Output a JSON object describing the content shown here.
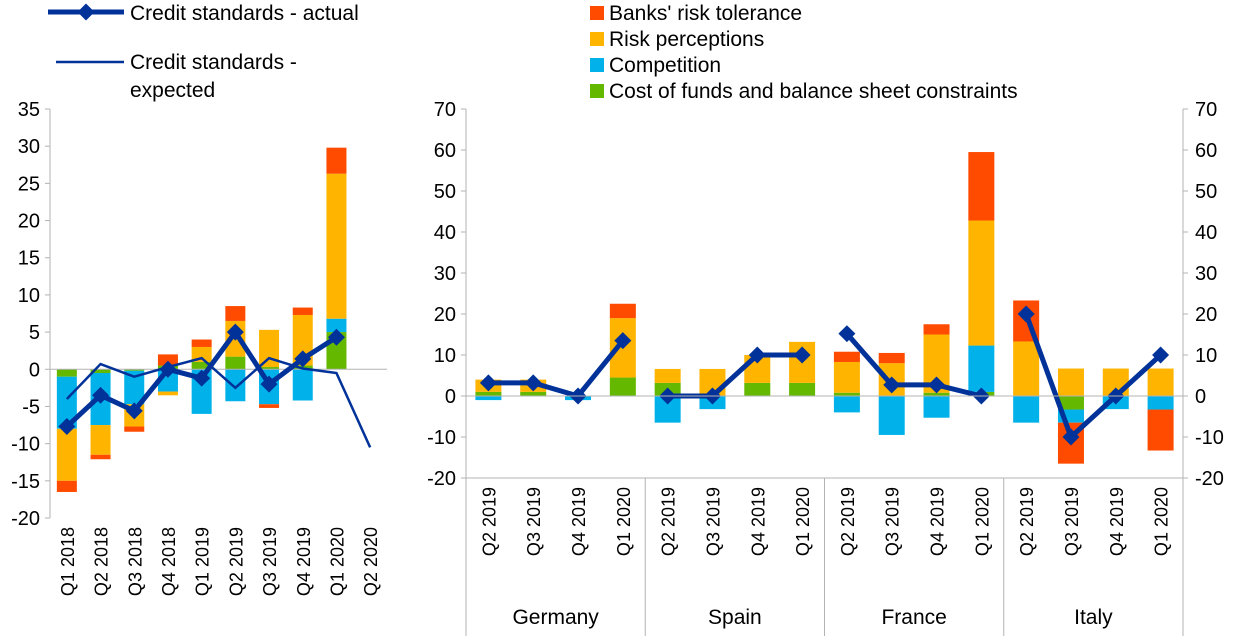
{
  "legend": {
    "actual": "Credit standards - actual",
    "expected_line1": "Credit standards -",
    "expected_line2": "expected",
    "risk_tolerance": "Banks' risk tolerance",
    "risk_perceptions": "Risk perceptions",
    "competition": "Competition",
    "cost_of_funds": "Cost of funds and balance sheet constraints"
  },
  "colors": {
    "risk_tolerance": "#ff4b00",
    "risk_perceptions": "#ffb400",
    "competition": "#00b1ea",
    "cost_of_funds": "#65b800",
    "actual": "#003299",
    "expected": "#003299",
    "axis": "#b3b3b3"
  },
  "chart_data": [
    {
      "type": "bar",
      "subtype": "stacked bar with lines",
      "title": "",
      "xlabel": "",
      "ylabel": "",
      "ylim": [
        -20,
        35
      ],
      "yticks": [
        35,
        30,
        25,
        20,
        15,
        10,
        5,
        0,
        -5,
        -10,
        -15,
        -20
      ],
      "grid": false,
      "legend_position": "top-left",
      "categories": [
        "Q1 2018",
        "Q2 2018",
        "Q3 2018",
        "Q4 2018",
        "Q1 2019",
        "Q2 2019",
        "Q3 2019",
        "Q4 2019",
        "Q1 2020",
        "Q2 2020"
      ],
      "series": [
        {
          "name": "Cost of funds and balance sheet constraints",
          "kind": "bar",
          "values": [
            -1,
            -0.5,
            -0.2,
            0.5,
            1,
            1.7,
            0.3,
            0.5,
            5,
            null
          ]
        },
        {
          "name": "Competition",
          "kind": "bar",
          "values": [
            -7,
            -7,
            -4.5,
            -3,
            -6,
            -4.3,
            -4.7,
            -4.2,
            1.8,
            null
          ]
        },
        {
          "name": "Risk perceptions",
          "kind": "bar",
          "values": [
            -7,
            -4,
            -3,
            -0.5,
            2,
            4.8,
            5,
            6.8,
            19.5,
            null
          ]
        },
        {
          "name": "Banks' risk tolerance",
          "kind": "bar",
          "values": [
            -1.5,
            -0.6,
            -0.7,
            1.5,
            1,
            2,
            -0.5,
            1,
            3.5,
            null
          ]
        },
        {
          "name": "Credit standards - actual",
          "kind": "line-marker",
          "values": [
            -7.7,
            -3.5,
            -5.6,
            0,
            -1.2,
            5,
            -2,
            1.4,
            4.3,
            null
          ]
        },
        {
          "name": "Credit standards - expected",
          "kind": "line",
          "values": [
            -4,
            0.7,
            -1,
            0.3,
            1.5,
            -2.5,
            1.5,
            0.1,
            -0.5,
            -10.5
          ]
        }
      ]
    },
    {
      "type": "bar",
      "subtype": "stacked bar with lines",
      "title": "",
      "xlabel": "",
      "ylabel": "",
      "ylim": [
        -20,
        70
      ],
      "yticks": [
        70,
        60,
        50,
        40,
        30,
        20,
        10,
        0,
        -10,
        -20
      ],
      "grid": false,
      "legend_position": "top-center",
      "groups": [
        {
          "name": "Germany",
          "categories": [
            "Q2 2019",
            "Q3 2019",
            "Q4 2019",
            "Q1 2020"
          ],
          "series": [
            {
              "name": "Cost of funds and balance sheet constraints",
              "values": [
                1,
                1,
                0,
                4.5
              ]
            },
            {
              "name": "Competition",
              "values": [
                -1,
                0,
                -1,
                0
              ]
            },
            {
              "name": "Risk perceptions",
              "values": [
                3,
                3,
                0,
                14.5
              ]
            },
            {
              "name": "Banks' risk tolerance",
              "values": [
                0,
                0,
                0,
                3.5
              ]
            },
            {
              "name": "Credit standards - actual",
              "values": [
                3.2,
                3.2,
                0,
                13.5
              ]
            }
          ]
        },
        {
          "name": "Spain",
          "categories": [
            "Q2 2019",
            "Q3 2019",
            "Q4 2019",
            "Q1 2020"
          ],
          "series": [
            {
              "name": "Cost of funds and balance sheet constraints",
              "values": [
                3.2,
                0,
                3.2,
                3.2
              ]
            },
            {
              "name": "Competition",
              "values": [
                -6.5,
                -3.2,
                0,
                0
              ]
            },
            {
              "name": "Risk perceptions",
              "values": [
                3.4,
                6.6,
                6.8,
                10
              ]
            },
            {
              "name": "Banks' risk tolerance",
              "values": [
                0,
                0,
                0,
                0
              ]
            },
            {
              "name": "Credit standards - actual",
              "values": [
                0,
                0,
                10,
                10
              ]
            }
          ]
        },
        {
          "name": "France",
          "categories": [
            "Q2 2019",
            "Q3 2019",
            "Q4 2019",
            "Q1 2020"
          ],
          "series": [
            {
              "name": "Cost of funds and balance sheet constraints",
              "values": [
                0.8,
                0,
                0.8,
                1
              ]
            },
            {
              "name": "Competition",
              "values": [
                -4,
                -9.5,
                -5.3,
                11.3
              ]
            },
            {
              "name": "Risk perceptions",
              "values": [
                7.5,
                8,
                14.2,
                30.5
              ]
            },
            {
              "name": "Banks' risk tolerance",
              "values": [
                2.5,
                2.5,
                2.5,
                16.7
              ]
            },
            {
              "name": "Credit standards - actual",
              "values": [
                15.2,
                2.7,
                2.7,
                0
              ]
            }
          ]
        },
        {
          "name": "Italy",
          "categories": [
            "Q2 2019",
            "Q3 2019",
            "Q4 2019",
            "Q1 2020"
          ],
          "series": [
            {
              "name": "Cost of funds and balance sheet constraints",
              "values": [
                0,
                -3.3,
                0,
                0
              ]
            },
            {
              "name": "Competition",
              "values": [
                -6.5,
                -3.2,
                -3.2,
                -3.3
              ]
            },
            {
              "name": "Risk perceptions",
              "values": [
                13.3,
                6.7,
                6.7,
                6.7
              ]
            },
            {
              "name": "Banks' risk tolerance",
              "values": [
                10,
                -10,
                0,
                -10
              ]
            },
            {
              "name": "Credit standards - actual",
              "values": [
                20,
                -10,
                0,
                10
              ]
            }
          ]
        }
      ]
    }
  ]
}
